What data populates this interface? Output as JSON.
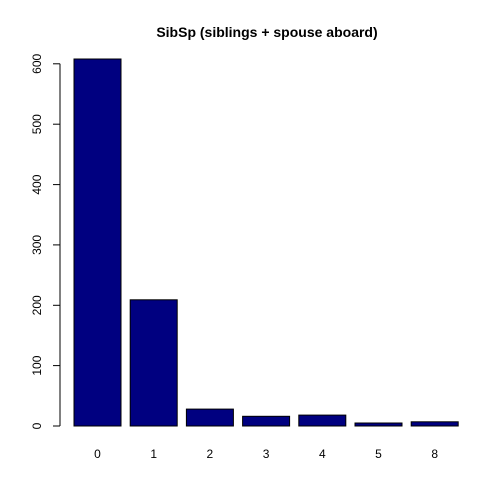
{
  "chart_data": {
    "type": "bar",
    "title": "SibSp (siblings + spouse aboard)",
    "xlabel": "",
    "ylabel": "",
    "categories": [
      "0",
      "1",
      "2",
      "3",
      "4",
      "5",
      "8"
    ],
    "values": [
      608,
      209,
      28,
      16,
      18,
      5,
      7
    ],
    "ylim": [
      0,
      608
    ],
    "yticks": [
      0,
      100,
      200,
      300,
      400,
      500,
      600
    ],
    "grid": false,
    "legend": "none",
    "colors": {
      "bar_fill": "#000080",
      "bar_stroke": "#000000",
      "axis": "#000000",
      "background": "#ffffff"
    }
  }
}
